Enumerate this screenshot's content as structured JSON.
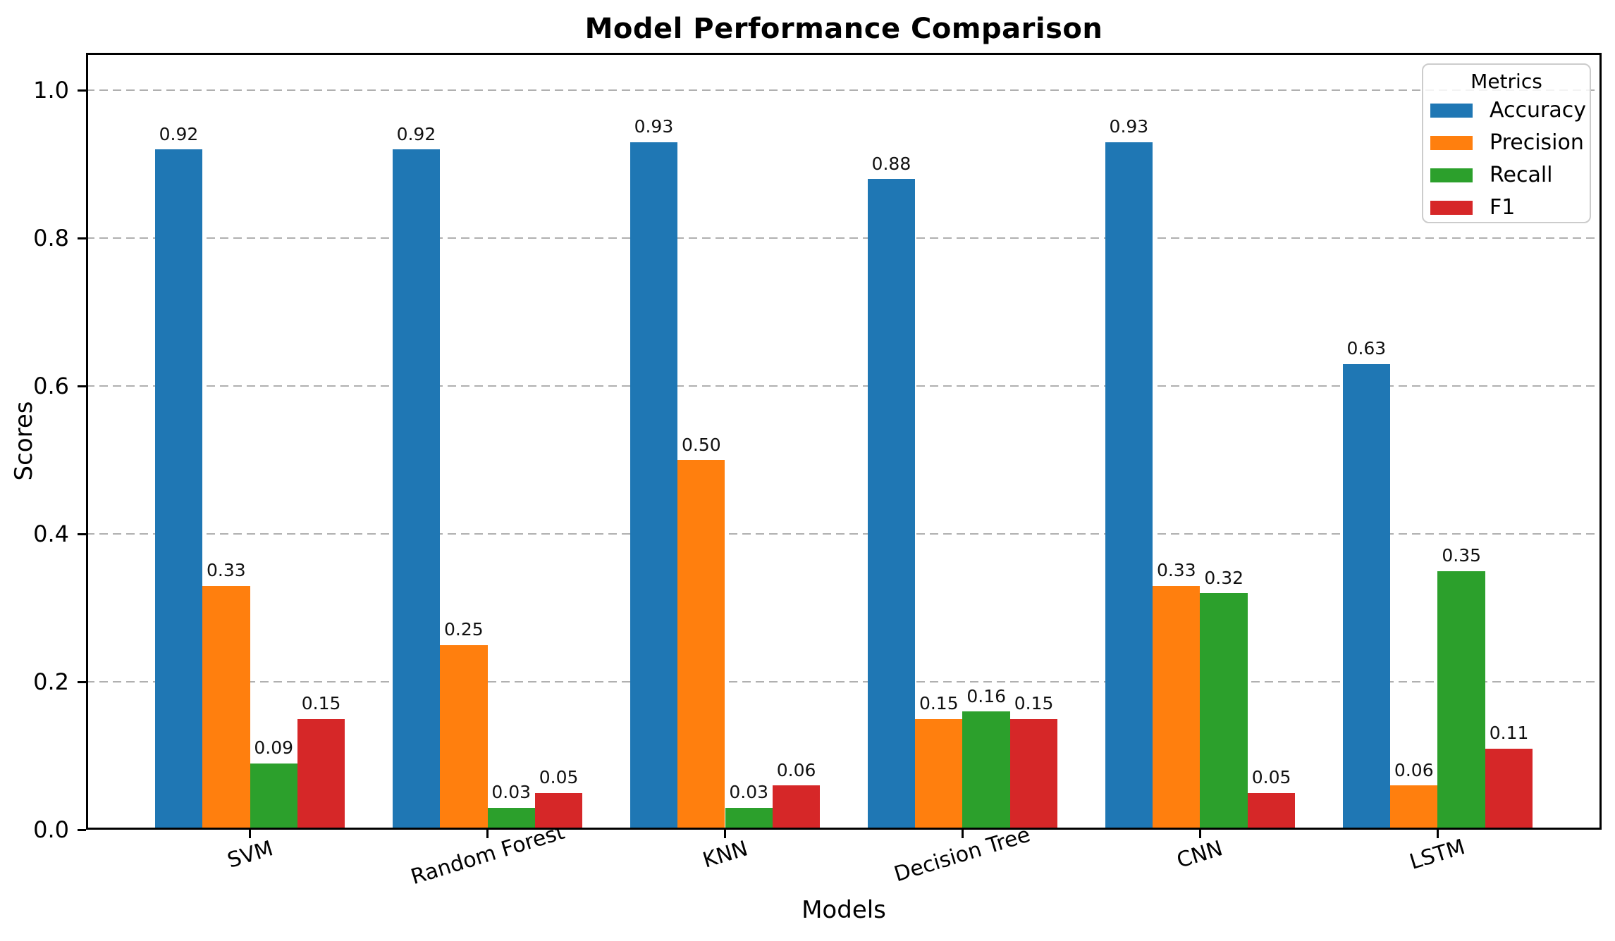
{
  "chart_data": {
    "type": "bar",
    "title": "Model Performance Comparison",
    "xlabel": "Models",
    "ylabel": "Scores",
    "legend_title": "Metrics",
    "legend_position": "upper right",
    "grid": "horizontal dashed",
    "categories": [
      "SVM",
      "Random Forest",
      "KNN",
      "Decision Tree",
      "CNN",
      "LSTM"
    ],
    "series": [
      {
        "name": "Accuracy",
        "color": "#1f77b4",
        "values": [
          0.92,
          0.92,
          0.93,
          0.88,
          0.93,
          0.63
        ]
      },
      {
        "name": "Precision",
        "color": "#ff7f0e",
        "values": [
          0.33,
          0.25,
          0.5,
          0.15,
          0.33,
          0.06
        ]
      },
      {
        "name": "Recall",
        "color": "#2ca02c",
        "values": [
          0.09,
          0.03,
          0.03,
          0.16,
          0.32,
          0.35
        ]
      },
      {
        "name": "F1",
        "color": "#d62728",
        "values": [
          0.15,
          0.05,
          0.06,
          0.15,
          0.05,
          0.11
        ]
      }
    ],
    "yticks": [
      0.0,
      0.2,
      0.4,
      0.6,
      0.8,
      1.0
    ],
    "ylim": [
      0,
      1.05
    ],
    "bar_label_format": "0.00"
  }
}
